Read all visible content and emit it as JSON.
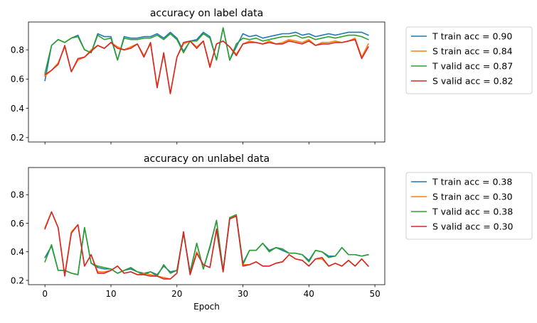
{
  "chart_data": [
    {
      "type": "line",
      "title": "accuracy on label data",
      "xlabel": "",
      "ylabel": "",
      "xlim": [
        -2.5,
        51.5
      ],
      "ylim": [
        0.17,
        0.99
      ],
      "xticks": [
        0,
        10,
        20,
        30,
        40,
        50
      ],
      "xtick_labels_visible": false,
      "yticks": [
        0.2,
        0.4,
        0.6,
        0.8
      ],
      "ytick_labels": [
        "0.2",
        "0.4",
        "0.6",
        "0.8"
      ],
      "grid": false,
      "legend_position": "outside-right",
      "x": [
        0,
        1,
        2,
        3,
        4,
        5,
        6,
        7,
        8,
        9,
        10,
        11,
        12,
        13,
        14,
        15,
        16,
        17,
        18,
        19,
        20,
        21,
        22,
        23,
        24,
        25,
        26,
        27,
        28,
        29,
        30,
        31,
        32,
        33,
        34,
        35,
        36,
        37,
        38,
        39,
        40,
        41,
        42,
        43,
        44,
        45,
        46,
        47,
        48,
        49
      ],
      "series": [
        {
          "name": "T train acc = 0.90",
          "color": "#1f77b4",
          "values": [
            0.59,
            0.83,
            0.87,
            0.85,
            0.88,
            0.9,
            0.8,
            0.78,
            0.91,
            0.89,
            0.89,
            0.73,
            0.89,
            0.88,
            0.88,
            0.89,
            0.89,
            0.91,
            0.88,
            0.92,
            0.88,
            0.79,
            0.86,
            0.87,
            0.92,
            0.89,
            0.73,
            0.95,
            0.73,
            0.82,
            0.91,
            0.89,
            0.9,
            0.88,
            0.89,
            0.9,
            0.91,
            0.91,
            0.92,
            0.9,
            0.91,
            0.89,
            0.9,
            0.91,
            0.9,
            0.91,
            0.92,
            0.92,
            0.92,
            0.9
          ]
        },
        {
          "name": "S train acc = 0.84",
          "color": "#ff7f0e",
          "values": [
            0.62,
            0.66,
            0.71,
            0.82,
            0.65,
            0.73,
            0.75,
            0.8,
            0.83,
            0.81,
            0.85,
            0.82,
            0.8,
            0.82,
            0.84,
            0.76,
            0.84,
            0.55,
            0.77,
            0.5,
            0.75,
            0.84,
            0.86,
            0.82,
            0.86,
            0.69,
            0.84,
            0.86,
            0.82,
            0.77,
            0.84,
            0.86,
            0.85,
            0.84,
            0.86,
            0.84,
            0.85,
            0.87,
            0.86,
            0.85,
            0.87,
            0.83,
            0.85,
            0.85,
            0.86,
            0.85,
            0.86,
            0.88,
            0.75,
            0.84
          ]
        },
        {
          "name": "T valid acc = 0.87",
          "color": "#2ca02c",
          "values": [
            0.64,
            0.83,
            0.87,
            0.85,
            0.88,
            0.89,
            0.8,
            0.78,
            0.9,
            0.87,
            0.88,
            0.73,
            0.88,
            0.87,
            0.87,
            0.88,
            0.88,
            0.9,
            0.87,
            0.91,
            0.87,
            0.78,
            0.86,
            0.86,
            0.91,
            0.88,
            0.73,
            0.95,
            0.73,
            0.84,
            0.88,
            0.87,
            0.88,
            0.86,
            0.87,
            0.88,
            0.89,
            0.89,
            0.9,
            0.88,
            0.89,
            0.87,
            0.88,
            0.89,
            0.88,
            0.89,
            0.9,
            0.9,
            0.89,
            0.87
          ]
        },
        {
          "name": "S valid acc = 0.82",
          "color": "#d62728",
          "values": [
            0.63,
            0.66,
            0.7,
            0.83,
            0.65,
            0.74,
            0.75,
            0.79,
            0.83,
            0.81,
            0.85,
            0.81,
            0.8,
            0.81,
            0.84,
            0.75,
            0.85,
            0.54,
            0.78,
            0.5,
            0.75,
            0.85,
            0.86,
            0.81,
            0.86,
            0.68,
            0.84,
            0.86,
            0.82,
            0.76,
            0.84,
            0.85,
            0.85,
            0.84,
            0.85,
            0.84,
            0.84,
            0.86,
            0.85,
            0.84,
            0.86,
            0.83,
            0.84,
            0.84,
            0.85,
            0.85,
            0.86,
            0.87,
            0.74,
            0.82
          ]
        }
      ]
    },
    {
      "type": "line",
      "title": "accuracy on unlabel data",
      "xlabel": "Epoch",
      "ylabel": "",
      "xlim": [
        -2.5,
        51.5
      ],
      "ylim": [
        0.17,
        0.99
      ],
      "xticks": [
        0,
        10,
        20,
        30,
        40,
        50
      ],
      "xtick_labels": [
        "0",
        "10",
        "20",
        "30",
        "40",
        "50"
      ],
      "yticks": [
        0.2,
        0.4,
        0.6,
        0.8
      ],
      "ytick_labels": [
        "0.2",
        "0.4",
        "0.6",
        "0.8"
      ],
      "grid": false,
      "legend_position": "outside-right",
      "x": [
        0,
        1,
        2,
        3,
        4,
        5,
        6,
        7,
        8,
        9,
        10,
        11,
        12,
        13,
        14,
        15,
        16,
        17,
        18,
        19,
        20,
        21,
        22,
        23,
        24,
        25,
        26,
        27,
        28,
        29,
        30,
        31,
        32,
        33,
        34,
        35,
        36,
        37,
        38,
        39,
        40,
        41,
        42,
        43,
        44,
        45,
        46,
        47,
        48,
        49
      ],
      "series": [
        {
          "name": "T train acc = 0.38",
          "color": "#1f77b4",
          "values": [
            0.36,
            0.44,
            0.27,
            0.27,
            0.25,
            0.24,
            0.57,
            0.32,
            0.29,
            0.28,
            0.28,
            0.25,
            0.27,
            0.28,
            0.26,
            0.25,
            0.26,
            0.24,
            0.3,
            0.26,
            0.27,
            0.53,
            0.26,
            0.46,
            0.28,
            0.43,
            0.62,
            0.27,
            0.63,
            0.65,
            0.32,
            0.41,
            0.41,
            0.46,
            0.41,
            0.43,
            0.41,
            0.39,
            0.39,
            0.38,
            0.34,
            0.41,
            0.4,
            0.37,
            0.37,
            0.43,
            0.38,
            0.38,
            0.37,
            0.38
          ]
        },
        {
          "name": "S train acc = 0.30",
          "color": "#ff7f0e",
          "values": [
            0.57,
            0.68,
            0.57,
            0.24,
            0.54,
            0.59,
            0.3,
            0.38,
            0.26,
            0.26,
            0.27,
            0.3,
            0.25,
            0.26,
            0.24,
            0.25,
            0.24,
            0.23,
            0.22,
            0.21,
            0.25,
            0.54,
            0.24,
            0.4,
            0.31,
            0.29,
            0.55,
            0.26,
            0.64,
            0.65,
            0.31,
            0.31,
            0.33,
            0.3,
            0.3,
            0.32,
            0.33,
            0.38,
            0.35,
            0.34,
            0.3,
            0.35,
            0.35,
            0.3,
            0.32,
            0.3,
            0.34,
            0.3,
            0.35,
            0.3
          ]
        },
        {
          "name": "T valid acc = 0.38",
          "color": "#2ca02c",
          "values": [
            0.33,
            0.45,
            0.27,
            0.27,
            0.25,
            0.24,
            0.57,
            0.32,
            0.3,
            0.29,
            0.28,
            0.25,
            0.27,
            0.29,
            0.26,
            0.24,
            0.26,
            0.23,
            0.31,
            0.25,
            0.27,
            0.53,
            0.25,
            0.46,
            0.28,
            0.44,
            0.62,
            0.26,
            0.64,
            0.66,
            0.31,
            0.41,
            0.41,
            0.46,
            0.4,
            0.43,
            0.42,
            0.39,
            0.39,
            0.38,
            0.33,
            0.41,
            0.4,
            0.36,
            0.37,
            0.43,
            0.38,
            0.38,
            0.37,
            0.38
          ]
        },
        {
          "name": "S valid acc = 0.30",
          "color": "#d62728",
          "values": [
            0.56,
            0.68,
            0.57,
            0.23,
            0.53,
            0.59,
            0.3,
            0.38,
            0.25,
            0.25,
            0.27,
            0.3,
            0.25,
            0.26,
            0.24,
            0.24,
            0.23,
            0.23,
            0.21,
            0.21,
            0.25,
            0.54,
            0.24,
            0.39,
            0.31,
            0.29,
            0.56,
            0.26,
            0.63,
            0.65,
            0.3,
            0.31,
            0.33,
            0.3,
            0.3,
            0.32,
            0.33,
            0.38,
            0.35,
            0.34,
            0.3,
            0.35,
            0.36,
            0.3,
            0.32,
            0.3,
            0.34,
            0.3,
            0.35,
            0.3
          ]
        }
      ]
    }
  ]
}
